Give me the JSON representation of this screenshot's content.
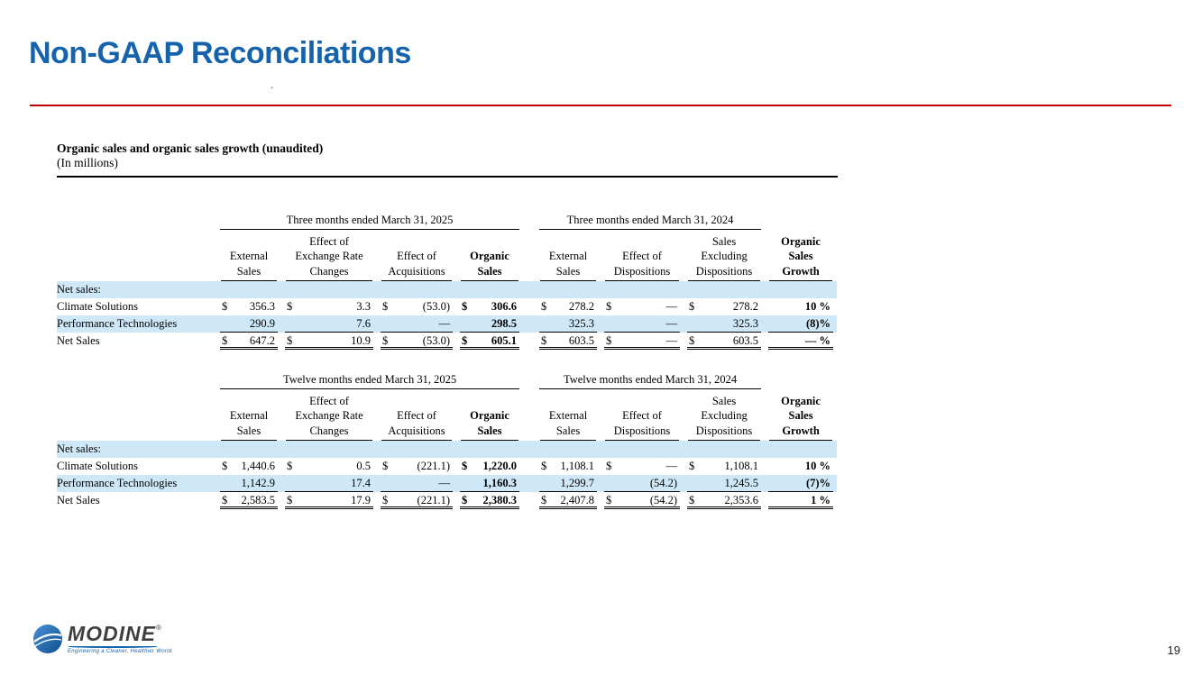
{
  "slide": {
    "title": "Non-GAAP Reconciliations",
    "stray_dot": ".",
    "page_number": "19"
  },
  "section": {
    "heading": "Organic sales and organic sales growth (unaudited)",
    "subheading": "(In millions)"
  },
  "logo": {
    "name": "MODINE",
    "registered": "®",
    "tagline": "Engineering a Cleaner, Healthier World."
  },
  "colors": {
    "title_blue": "#1463ac",
    "divider_red": "#c00000",
    "row_shade": "#cfe8f7"
  },
  "tables": [
    {
      "left_period": "Three months ended March 31, 2025",
      "right_period": "Three months ended March 31, 2024",
      "headers": [
        {
          "lines": "External\nSales",
          "bold": false
        },
        {
          "lines": "Effect of\nExchange Rate\nChanges",
          "bold": false
        },
        {
          "lines": "Effect of\nAcquisitions",
          "bold": false
        },
        {
          "lines": "Organic\nSales",
          "bold": true
        },
        {
          "lines": "External\nSales",
          "bold": false
        },
        {
          "lines": "Effect of\nDispositions",
          "bold": false
        },
        {
          "lines": "Sales\nExcluding\nDispositions",
          "bold": false
        },
        {
          "lines": "Organic\nSales\nGrowth",
          "bold": true
        }
      ],
      "rows": [
        {
          "label": "Net sales:",
          "type": "section",
          "shaded": true,
          "indent": 0,
          "cells": []
        },
        {
          "label": "Climate Solutions",
          "type": "data",
          "shaded": false,
          "indent": 1,
          "cells": [
            {
              "d": "$",
              "v": "356.3"
            },
            {
              "d": "$",
              "v": "3.3"
            },
            {
              "d": "$",
              "v": "(53.0)"
            },
            {
              "d": "$",
              "v": "306.6",
              "bold": true
            },
            {
              "d": "$",
              "v": "278.2"
            },
            {
              "d": "$",
              "v": "—"
            },
            {
              "d": "$",
              "v": "278.2"
            },
            {
              "d": "",
              "v": "10 %",
              "bold": true
            }
          ]
        },
        {
          "label": "Performance Technologies",
          "type": "data",
          "shaded": true,
          "indent": 1,
          "rule": true,
          "cells": [
            {
              "d": "",
              "v": "290.9"
            },
            {
              "d": "",
              "v": "7.6"
            },
            {
              "d": "",
              "v": "—"
            },
            {
              "d": "",
              "v": "298.5",
              "bold": true
            },
            {
              "d": "",
              "v": "325.3"
            },
            {
              "d": "",
              "v": "—"
            },
            {
              "d": "",
              "v": "325.3"
            },
            {
              "d": "",
              "v": "(8)%",
              "bold": true
            }
          ]
        },
        {
          "label": "Net Sales",
          "type": "total",
          "shaded": false,
          "indent": 2,
          "cells": [
            {
              "d": "$",
              "v": "647.2"
            },
            {
              "d": "$",
              "v": "10.9"
            },
            {
              "d": "$",
              "v": "(53.0)"
            },
            {
              "d": "$",
              "v": "605.1",
              "bold": true
            },
            {
              "d": "$",
              "v": "603.5"
            },
            {
              "d": "$",
              "v": "—"
            },
            {
              "d": "$",
              "v": "603.5"
            },
            {
              "d": "",
              "v": "— %",
              "bold": true
            }
          ]
        }
      ]
    },
    {
      "left_period": "Twelve months ended March 31, 2025",
      "right_period": "Twelve months ended March 31, 2024",
      "headers": [
        {
          "lines": "External\nSales",
          "bold": false
        },
        {
          "lines": "Effect of\nExchange Rate\nChanges",
          "bold": false
        },
        {
          "lines": "Effect of\nAcquisitions",
          "bold": false
        },
        {
          "lines": "Organic\nSales",
          "bold": true
        },
        {
          "lines": "External\nSales",
          "bold": false
        },
        {
          "lines": "Effect of\nDispositions",
          "bold": false
        },
        {
          "lines": "Sales\nExcluding\nDispositions",
          "bold": false
        },
        {
          "lines": "Organic\nSales\nGrowth",
          "bold": true
        }
      ],
      "rows": [
        {
          "label": "Net sales:",
          "type": "section",
          "shaded": true,
          "indent": 0,
          "cells": []
        },
        {
          "label": "Climate Solutions",
          "type": "data",
          "shaded": false,
          "indent": 1,
          "cells": [
            {
              "d": "$",
              "v": "1,440.6"
            },
            {
              "d": "$",
              "v": "0.5"
            },
            {
              "d": "$",
              "v": "(221.1)"
            },
            {
              "d": "$",
              "v": "1,220.0",
              "bold": true
            },
            {
              "d": "$",
              "v": "1,108.1"
            },
            {
              "d": "$",
              "v": "—"
            },
            {
              "d": "$",
              "v": "1,108.1"
            },
            {
              "d": "",
              "v": "10 %",
              "bold": true
            }
          ]
        },
        {
          "label": "Performance Technologies",
          "type": "data",
          "shaded": true,
          "indent": 1,
          "rule": true,
          "cells": [
            {
              "d": "",
              "v": "1,142.9"
            },
            {
              "d": "",
              "v": "17.4"
            },
            {
              "d": "",
              "v": "—"
            },
            {
              "d": "",
              "v": "1,160.3",
              "bold": true
            },
            {
              "d": "",
              "v": "1,299.7"
            },
            {
              "d": "",
              "v": "(54.2)"
            },
            {
              "d": "",
              "v": "1,245.5"
            },
            {
              "d": "",
              "v": "(7)%",
              "bold": true
            }
          ]
        },
        {
          "label": "Net Sales",
          "type": "total",
          "shaded": false,
          "indent": 2,
          "cells": [
            {
              "d": "$",
              "v": "2,583.5"
            },
            {
              "d": "$",
              "v": "17.9"
            },
            {
              "d": "$",
              "v": "(221.1)"
            },
            {
              "d": "$",
              "v": "2,380.3",
              "bold": true
            },
            {
              "d": "$",
              "v": "2,407.8"
            },
            {
              "d": "$",
              "v": "(54.2)"
            },
            {
              "d": "$",
              "v": "2,353.6"
            },
            {
              "d": "",
              "v": "1 %",
              "bold": true
            }
          ]
        }
      ]
    }
  ]
}
